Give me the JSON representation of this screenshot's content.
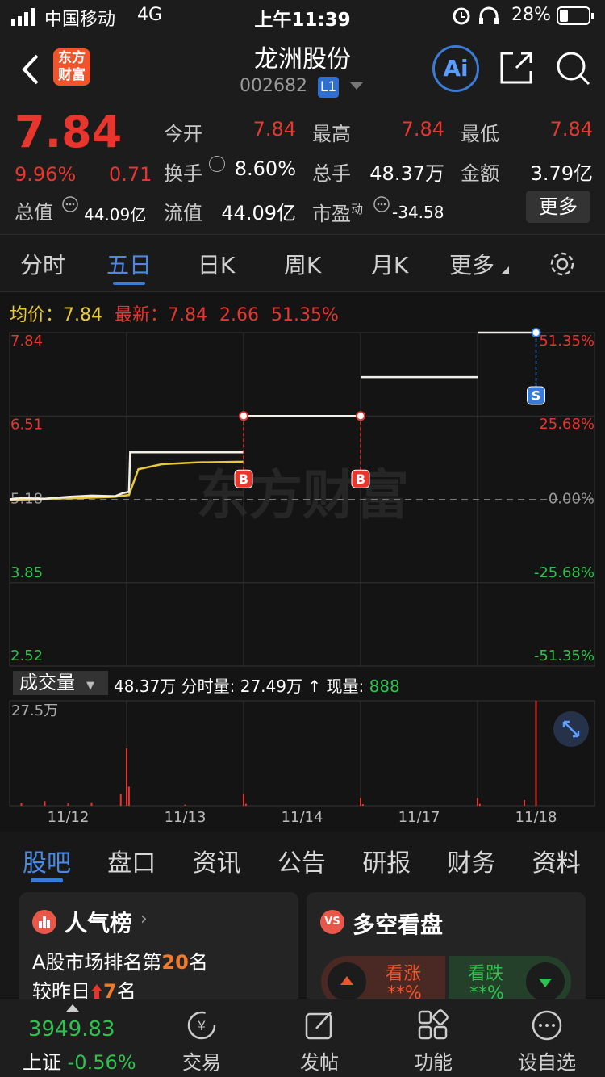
{
  "status_bar": {
    "carrier": "中国移动",
    "network": "4G",
    "time": "上午11:39",
    "battery": "28%"
  },
  "header": {
    "logo": [
      "东方",
      "财富"
    ],
    "title": "龙洲股份",
    "code": "002682",
    "level": "L1",
    "ai": "Ai"
  },
  "quote": {
    "price": "7.84",
    "change_pct": "9.96%",
    "change": "0.71",
    "market_cap_label": "总值",
    "market_cap": "44.09亿",
    "fields": [
      {
        "label": "今开",
        "value": "7.84",
        "color": "#e8352e"
      },
      {
        "label": "最高",
        "value": "7.84",
        "color": "#e8352e"
      },
      {
        "label": "最低",
        "value": "7.84",
        "color": "#e8352e"
      },
      {
        "label": "换手",
        "value": "8.60%",
        "color": "#ffffff"
      },
      {
        "label": "总手",
        "value": "48.37万",
        "color": "#ffffff"
      },
      {
        "label": "金额",
        "value": "3.79亿",
        "color": "#ffffff"
      },
      {
        "label": "流值",
        "value": "44.09亿",
        "color": "#ffffff"
      }
    ],
    "pe_label": "市盈",
    "pe_sup": "动",
    "pe": "-34.58",
    "more": "更多"
  },
  "period_tabs": {
    "items": [
      "分时",
      "五日",
      "日K",
      "周K",
      "月K",
      "更多"
    ],
    "active": 1
  },
  "legend": {
    "avg_label": "均价：",
    "avg": "7.84",
    "latest_label": "最新：",
    "latest": "7.84",
    "change": "2.66",
    "change_pct": "51.35%"
  },
  "chart_data": {
    "type": "line",
    "watermark": "东方财富",
    "categories": [
      "11/12",
      "11/13",
      "11/14",
      "11/17",
      "11/18"
    ],
    "xlim": [
      0,
      5
    ],
    "ylim": [
      2.52,
      7.84
    ],
    "yticks": [
      7.84,
      6.51,
      5.18,
      3.85,
      2.52
    ],
    "y2lim": [
      -51.35,
      51.35
    ],
    "y2ticks": [
      {
        "value": 51.35,
        "label": "51.35%"
      },
      {
        "value": 25.68,
        "label": "25.68%"
      },
      {
        "value": 0,
        "label": "0.00%"
      },
      {
        "value": -25.68,
        "label": "-25.68%"
      },
      {
        "value": -51.35,
        "label": "-51.35%"
      }
    ],
    "series": [
      {
        "name": "最新",
        "color": "#f2f0e6",
        "x": [
          0,
          0.1,
          0.3,
          0.5,
          0.7,
          0.9,
          0.97,
          1.02,
          1.03,
          2.0,
          2.0,
          2.0,
          3.0,
          3.0,
          3.0,
          4.0,
          4.0,
          4.0,
          4.5
        ],
        "values": [
          5.18,
          5.2,
          5.19,
          5.22,
          5.24,
          5.23,
          5.28,
          5.3,
          5.93,
          5.93,
          null,
          6.51,
          6.51,
          null,
          7.13,
          7.13,
          null,
          7.84,
          7.84
        ]
      },
      {
        "name": "均价",
        "color": "#e8c93a",
        "x": [
          0,
          0.3,
          0.6,
          0.9,
          1.02,
          1.1,
          1.3,
          1.6,
          2.0
        ],
        "values": [
          5.17,
          5.19,
          5.2,
          5.22,
          5.25,
          5.66,
          5.74,
          5.77,
          5.78
        ]
      }
    ],
    "trades": [
      {
        "x": 2.0,
        "price": 6.51,
        "label": "B",
        "color": "#e8352e"
      },
      {
        "x": 3.0,
        "price": 6.51,
        "label": "B",
        "color": "#e8352e"
      },
      {
        "x": 4.5,
        "price": 7.84,
        "label": "S",
        "color": "#3a7bd5"
      }
    ]
  },
  "volume": {
    "selector": "成交量",
    "total": "48.37万",
    "minute_label": "分时量:",
    "minute": "27.49万",
    "arrow": "↑",
    "current_label": "现量:",
    "current": "888",
    "ylim": [
      0,
      27.5
    ],
    "yticks": [
      {
        "value": 27.5,
        "label": "27.5万"
      }
    ],
    "color": "#e8352e",
    "x": [
      0.1,
      0.3,
      0.5,
      0.7,
      0.95,
      1.0,
      1.02,
      1.5,
      2.0,
      2.02,
      3.0,
      3.02,
      4.0,
      4.02,
      4.4,
      4.5
    ],
    "values": [
      0.8,
      1.2,
      0.6,
      0.9,
      3,
      15,
      5,
      0.3,
      3,
      0.5,
      2,
      0.4,
      2,
      0.5,
      1.5,
      27.49
    ]
  },
  "bottom_tabs": {
    "items": [
      "股吧",
      "盘口",
      "资讯",
      "公告",
      "研报",
      "财务",
      "资料"
    ],
    "active": 0
  },
  "cards": {
    "popularity": {
      "title": "人气榜",
      "line1": "A股市场排名第",
      "rank": "20",
      "rank_suffix": "名",
      "line2": "较昨日",
      "delta": "7",
      "delta_suffix": "名"
    },
    "sentiment": {
      "icon": "VS",
      "title": "多空看盘",
      "up": "看涨",
      "up_value": "**%",
      "down": "看跌",
      "down_value": "**%"
    }
  },
  "footer": {
    "index_value": "3949.83",
    "index_name": "上证",
    "index_change": "-0.56%",
    "nav": [
      "交易",
      "发帖",
      "功能",
      "设自选"
    ]
  }
}
